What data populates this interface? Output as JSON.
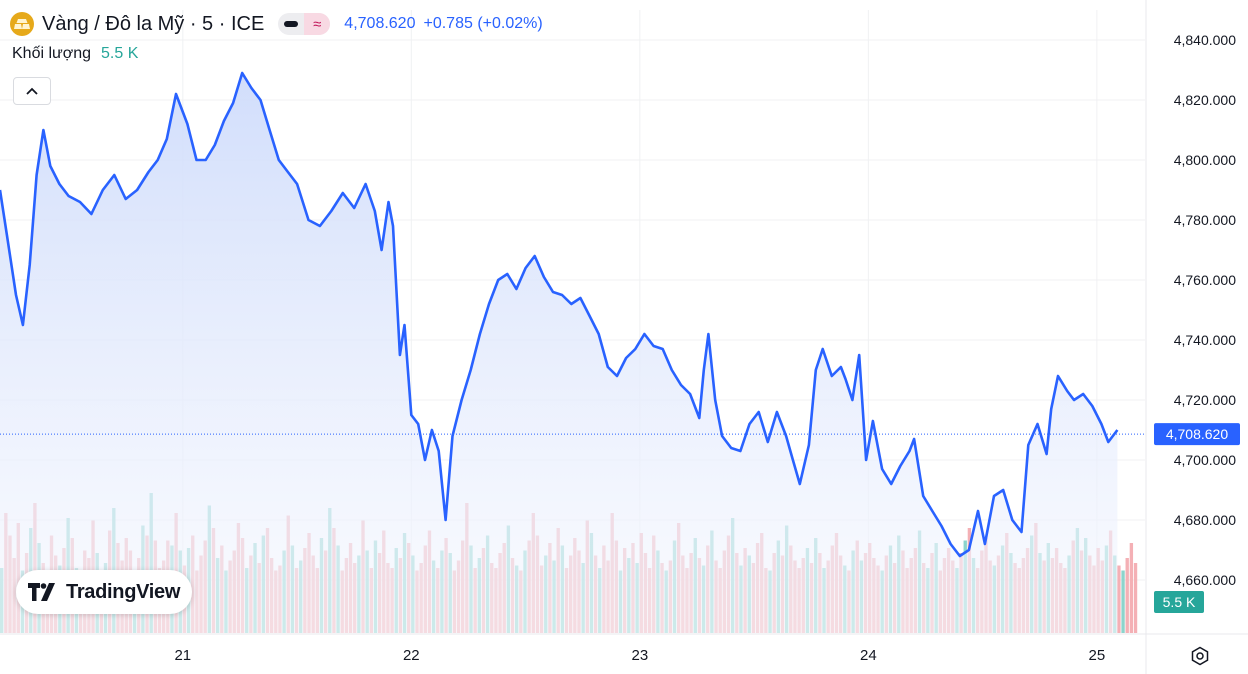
{
  "header": {
    "title": "Vàng / Đô la Mỹ · 5 · ICE",
    "icon": "gold-bars-icon",
    "mode_a_icon": "bars-style-icon",
    "mode_b_icon": "approx-icon",
    "mode_b_symbol": "≈",
    "price": "4,708.620",
    "change": "+0.785 (+0.02%)"
  },
  "volume_legend": {
    "label": "Khối lượng",
    "value": "5.5 K"
  },
  "branding": {
    "text": "TradingView",
    "icon": "tradingview-logo-icon"
  },
  "colors": {
    "line": "#2962ff",
    "area_top": "#cfdcfb",
    "volume_up": "#7fcfc6",
    "volume_down": "#f3a7ad",
    "price_tag": "#2962ff",
    "volume_tag": "#26a69a"
  },
  "chart_data": {
    "type": "area",
    "x_ticks": [
      "21",
      "22",
      "23",
      "24",
      "25"
    ],
    "x_range": [
      20.2,
      25.18
    ],
    "y_ticks": [
      "4,840.000",
      "4,820.000",
      "4,800.000",
      "4,780.000",
      "4,760.000",
      "4,740.000",
      "4,720.000",
      "4,700.000",
      "4,680.000",
      "4,660.000"
    ],
    "y_range": [
      4649,
      4853
    ],
    "last_price_label": "4,708.620",
    "last_price": 4708.62,
    "volume_label": "5.5 K",
    "series": [
      {
        "values": [
          [
            20.2,
            4790
          ],
          [
            20.23,
            4775
          ],
          [
            20.27,
            4755
          ],
          [
            20.3,
            4745
          ],
          [
            20.33,
            4765
          ],
          [
            20.36,
            4795
          ],
          [
            20.39,
            4810
          ],
          [
            20.42,
            4798
          ],
          [
            20.46,
            4792
          ],
          [
            20.5,
            4788
          ],
          [
            20.55,
            4786
          ],
          [
            20.6,
            4782
          ],
          [
            20.65,
            4790
          ],
          [
            20.7,
            4795
          ],
          [
            20.75,
            4787
          ],
          [
            20.8,
            4790
          ],
          [
            20.85,
            4796
          ],
          [
            20.89,
            4800
          ],
          [
            20.93,
            4807
          ],
          [
            20.97,
            4822
          ],
          [
            21.02,
            4812
          ],
          [
            21.06,
            4800
          ],
          [
            21.1,
            4800
          ],
          [
            21.14,
            4805
          ],
          [
            21.18,
            4813
          ],
          [
            21.22,
            4819
          ],
          [
            21.26,
            4829
          ],
          [
            21.3,
            4824
          ],
          [
            21.34,
            4820
          ],
          [
            21.38,
            4810
          ],
          [
            21.42,
            4800
          ],
          [
            21.46,
            4796
          ],
          [
            21.5,
            4792
          ],
          [
            21.55,
            4780
          ],
          [
            21.6,
            4778
          ],
          [
            21.65,
            4783
          ],
          [
            21.7,
            4789
          ],
          [
            21.75,
            4784
          ],
          [
            21.8,
            4792
          ],
          [
            21.84,
            4783
          ],
          [
            21.87,
            4770
          ],
          [
            21.9,
            4786
          ],
          [
            21.92,
            4778
          ],
          [
            21.95,
            4735
          ],
          [
            21.97,
            4745
          ],
          [
            22.0,
            4715
          ],
          [
            22.03,
            4712
          ],
          [
            22.06,
            4700
          ],
          [
            22.09,
            4710
          ],
          [
            22.12,
            4703
          ],
          [
            22.15,
            4680
          ],
          [
            22.18,
            4708
          ],
          [
            22.22,
            4720
          ],
          [
            22.26,
            4730
          ],
          [
            22.3,
            4742
          ],
          [
            22.34,
            4752
          ],
          [
            22.38,
            4760
          ],
          [
            22.42,
            4762
          ],
          [
            22.46,
            4757
          ],
          [
            22.5,
            4764
          ],
          [
            22.54,
            4768
          ],
          [
            22.58,
            4761
          ],
          [
            22.62,
            4756
          ],
          [
            22.66,
            4755
          ],
          [
            22.7,
            4752
          ],
          [
            22.74,
            4754
          ],
          [
            22.78,
            4748
          ],
          [
            22.82,
            4742
          ],
          [
            22.86,
            4731
          ],
          [
            22.9,
            4728
          ],
          [
            22.94,
            4734
          ],
          [
            22.98,
            4737
          ],
          [
            23.02,
            4742
          ],
          [
            23.06,
            4738
          ],
          [
            23.1,
            4737
          ],
          [
            23.14,
            4730
          ],
          [
            23.18,
            4725
          ],
          [
            23.22,
            4722
          ],
          [
            23.26,
            4714
          ],
          [
            23.28,
            4730
          ],
          [
            23.3,
            4742
          ],
          [
            23.33,
            4720
          ],
          [
            23.36,
            4708
          ],
          [
            23.4,
            4704
          ],
          [
            23.44,
            4703
          ],
          [
            23.48,
            4712
          ],
          [
            23.52,
            4716
          ],
          [
            23.56,
            4706
          ],
          [
            23.6,
            4716
          ],
          [
            23.64,
            4708
          ],
          [
            23.67,
            4700
          ],
          [
            23.7,
            4692
          ],
          [
            23.74,
            4705
          ],
          [
            23.77,
            4730
          ],
          [
            23.8,
            4737
          ],
          [
            23.84,
            4728
          ],
          [
            23.88,
            4731
          ],
          [
            23.9,
            4727
          ],
          [
            23.93,
            4720
          ],
          [
            23.96,
            4735
          ],
          [
            23.99,
            4700
          ],
          [
            24.02,
            4713
          ],
          [
            24.06,
            4697
          ],
          [
            24.1,
            4692
          ],
          [
            24.14,
            4698
          ],
          [
            24.18,
            4703
          ],
          [
            24.2,
            4707
          ],
          [
            24.24,
            4688
          ],
          [
            24.28,
            4683
          ],
          [
            24.32,
            4678
          ],
          [
            24.36,
            4672
          ],
          [
            24.4,
            4668
          ],
          [
            24.44,
            4670
          ],
          [
            24.48,
            4683
          ],
          [
            24.51,
            4672
          ],
          [
            24.55,
            4688
          ],
          [
            24.59,
            4690
          ],
          [
            24.63,
            4680
          ],
          [
            24.67,
            4676
          ],
          [
            24.7,
            4705
          ],
          [
            24.74,
            4712
          ],
          [
            24.78,
            4702
          ],
          [
            24.8,
            4717
          ],
          [
            24.83,
            4728
          ],
          [
            24.87,
            4723
          ],
          [
            24.9,
            4720
          ],
          [
            24.94,
            4722
          ],
          [
            24.98,
            4718
          ],
          [
            25.02,
            4712
          ],
          [
            25.05,
            4706
          ],
          [
            25.09,
            4710
          ]
        ]
      }
    ],
    "volume": [
      2600,
      4800,
      3900,
      3000,
      4400,
      2500,
      3200,
      4200,
      5200,
      3600,
      2800,
      2500,
      3900,
      3100,
      2700,
      3400,
      4600,
      3800,
      2600,
      2400,
      3300,
      3000,
      4500,
      3200,
      2400,
      2800,
      4100,
      5000,
      3600,
      2900,
      3800,
      3300,
      2500,
      3000,
      4300,
      3900,
      5600,
      3700,
      2600,
      2900,
      3700,
      3500,
      4800,
      3300,
      2700,
      3400,
      3900,
      2500,
      3100,
      3700,
      5100,
      4200,
      3000,
      3500,
      2500,
      2900,
      3300,
      4400,
      3800,
      2600,
      3100,
      3600,
      2800,
      3900,
      4200,
      3000,
      2500,
      2700,
      3300,
      4700,
      3500,
      2600,
      2900,
      3400,
      4000,
      3100,
      2600,
      3800,
      3300,
      5000,
      4200,
      3500,
      2500,
      3000,
      3600,
      2800,
      3100,
      4500,
      3300,
      2600,
      3700,
      3200,
      4100,
      2800,
      2600,
      3400,
      3000,
      4000,
      3600,
      3100,
      2500,
      2800,
      3500,
      4100,
      2900,
      2600,
      3300,
      3800,
      3200,
      2500,
      2900,
      3700,
      5200,
      3500,
      2600,
      3000,
      3400,
      3900,
      2800,
      2600,
      3200,
      3600,
      4300,
      3000,
      2700,
      2500,
      3300,
      3700,
      4800,
      3900,
      2700,
      3100,
      3600,
      2900,
      4200,
      3500,
      2600,
      3100,
      3800,
      3300,
      2800,
      4500,
      4000,
      3100,
      2600,
      3500,
      2900,
      4800,
      3700,
      2500,
      3400,
      3000,
      3600,
      2800,
      4000,
      3200,
      2600,
      3900,
      3300,
      2800,
      2500,
      2900,
      3700,
      4400,
      3100,
      2600,
      3200,
      3800,
      3000,
      2700,
      3500,
      4100,
      2900,
      2600,
      3300,
      3900,
      4600,
      3200,
      2700,
      3400,
      3100,
      2800,
      3600,
      4000,
      2600,
      2500,
      3200,
      3700,
      3100,
      4300,
      3500,
      2900,
      2600,
      3000,
      3400,
      2800,
      3800,
      3200,
      2600,
      2900,
      3500,
      4000,
      3100,
      2700,
      2500,
      3300,
      3700,
      2900,
      3200,
      3600,
      3000,
      2700,
      2500,
      3100,
      3500,
      2800,
      3900,
      3300,
      2600,
      3000,
      3400,
      4100,
      2800,
      2600,
      3200,
      3600,
      2500,
      3000,
      3400,
      2900,
      2600,
      3200,
      3700,
      4200,
      3000,
      2600,
      3300,
      3800,
      2900,
      2700,
      3100,
      3500,
      4000,
      3200,
      2800,
      2600,
      3000,
      3400,
      3900,
      4400,
      3200,
      2900,
      3600,
      3000,
      3400,
      2800,
      2600,
      3100,
      3700,
      4200,
      3300,
      3800,
      3100,
      2700,
      3400,
      2900,
      3500,
      4100,
      3100,
      2700,
      2500,
      3000,
      3600,
      2800
    ]
  }
}
